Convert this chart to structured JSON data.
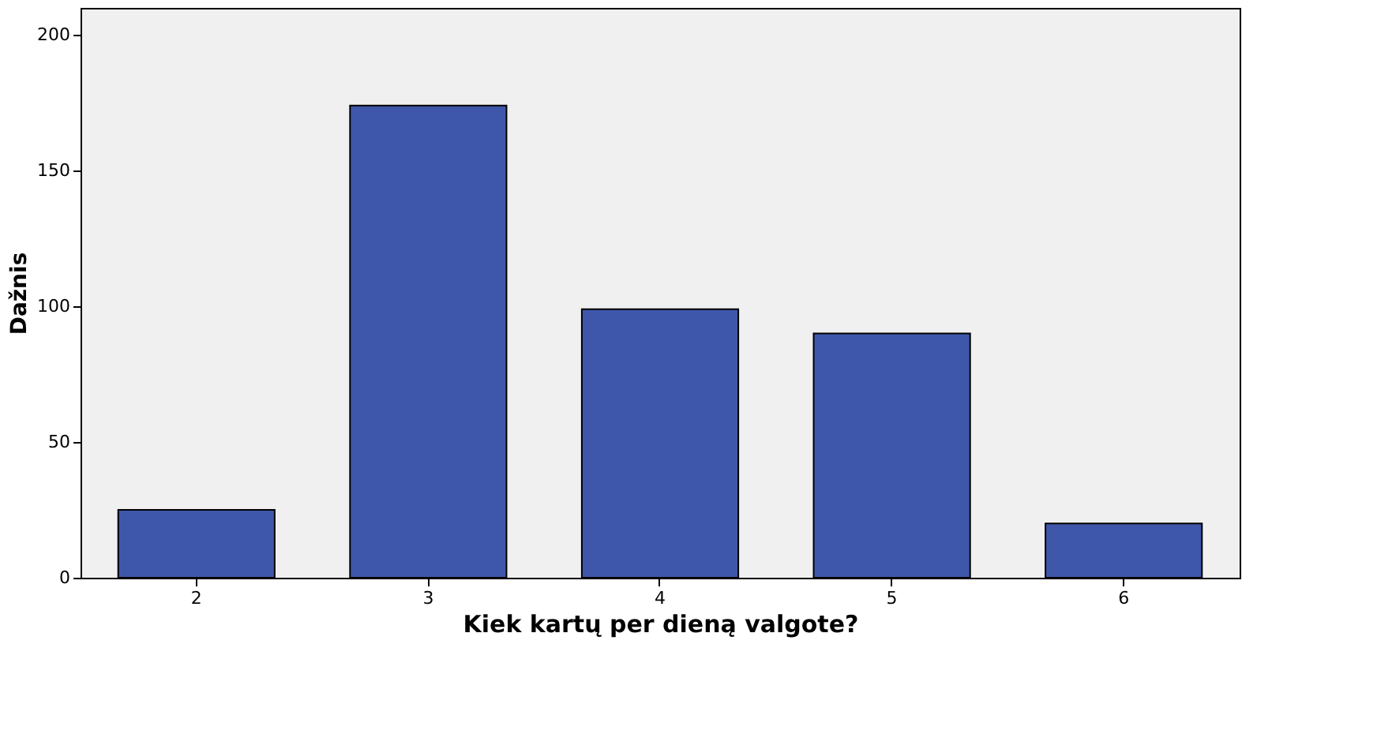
{
  "chart_data": {
    "type": "bar",
    "xlabel": "Kiek kartų per dieną valgote?",
    "ylabel": "Dažnis",
    "categories": [
      "2",
      "3",
      "4",
      "5",
      "6"
    ],
    "values": [
      25,
      174,
      99,
      90,
      20
    ],
    "color": "#3f57aa",
    "ylim": [
      0,
      210
    ],
    "yticks": [
      0,
      50,
      100,
      150,
      200
    ],
    "grid": false
  }
}
